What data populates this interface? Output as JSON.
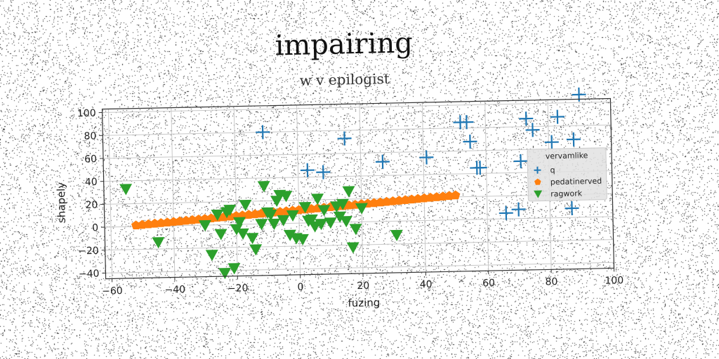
{
  "chart_data": {
    "type": "scatter",
    "title": "impairing",
    "subtitle": "w v epilogist",
    "xlabel": "fuzing",
    "ylabel": "shapely",
    "xlim": [
      -62,
      100
    ],
    "ylim": [
      -45,
      103
    ],
    "xticks": [
      -60,
      -40,
      -20,
      0,
      20,
      40,
      60,
      80,
      100
    ],
    "yticks": [
      -40,
      -20,
      0,
      20,
      40,
      60,
      80,
      100
    ],
    "grid": true,
    "legend": {
      "title": "vervamlike",
      "placement": "center-right",
      "entries": [
        "q",
        "pedatinerved",
        "ragwork"
      ]
    },
    "series": [
      {
        "name": "q",
        "marker": "plus",
        "color": "#1f77b4",
        "x": [
          -11,
          15,
          27,
          41,
          52,
          54,
          55,
          57,
          58,
          66,
          70,
          71,
          73,
          75,
          81,
          83,
          87,
          88,
          90,
          3,
          8
        ],
        "y": [
          80,
          73,
          52,
          55,
          85,
          85,
          68,
          45,
          45,
          5,
          8,
          50,
          87,
          77,
          66,
          88,
          8,
          68,
          107,
          46,
          44
        ]
      },
      {
        "name": "pedatinerved",
        "marker": "pentagon",
        "color": "#ff7f0e",
        "x": [
          -52,
          -50,
          -48,
          -46,
          -44,
          -42,
          -40,
          -38,
          -36,
          -34,
          -32,
          -30,
          -28,
          -26,
          -24,
          -22,
          -20,
          -18,
          -16,
          -14,
          -12,
          -10,
          -8,
          -6,
          -4,
          -2,
          0,
          2,
          4,
          6,
          8,
          10,
          12,
          14,
          16,
          18,
          20,
          22,
          24,
          26,
          28,
          30,
          32,
          34,
          36,
          38,
          40,
          42,
          44,
          46,
          48,
          50
        ],
        "y": [
          1,
          1.4,
          1.8,
          2.2,
          2.6,
          3,
          3.4,
          3.8,
          4.2,
          4.6,
          5,
          5.4,
          5.8,
          6.2,
          6.6,
          7,
          7.4,
          7.8,
          8.2,
          8.6,
          9,
          9.4,
          9.8,
          10.2,
          10.6,
          11,
          11.4,
          11.8,
          12.2,
          12.6,
          13,
          13.4,
          13.8,
          14.2,
          14.6,
          15,
          15.4,
          15.8,
          16.2,
          16.6,
          17,
          17.4,
          17.8,
          18.2,
          18.6,
          19,
          19.4,
          19.8,
          20.2,
          20.6,
          21,
          21.4
        ]
      },
      {
        "name": "ragwork",
        "marker": "triangle-down",
        "color": "#2ca02c",
        "x": [
          -55,
          -45,
          -30,
          -28,
          -25,
          -24,
          -23,
          -22,
          -21,
          -20,
          -19,
          -18,
          -17,
          -15,
          -14,
          -12,
          -11,
          -10,
          -9,
          -8,
          -7,
          -6,
          -5,
          -4,
          -3,
          -2,
          -1,
          1,
          2,
          3,
          4,
          5,
          6,
          7,
          8,
          10,
          12,
          13,
          14,
          15,
          16,
          17,
          18,
          20,
          31,
          -26
        ],
        "y": [
          33,
          -14,
          0,
          -26,
          -8,
          -42,
          11,
          13,
          -38,
          -4,
          2,
          -8,
          17,
          -12,
          -22,
          0,
          33,
          10,
          8,
          0,
          20,
          25,
          3,
          24,
          -10,
          7,
          -13,
          -14,
          14,
          2,
          3,
          -3,
          21,
          -1,
          11,
          0,
          14,
          5,
          16,
          1,
          27,
          -22,
          -6,
          12,
          -12,
          9
        ]
      }
    ]
  }
}
